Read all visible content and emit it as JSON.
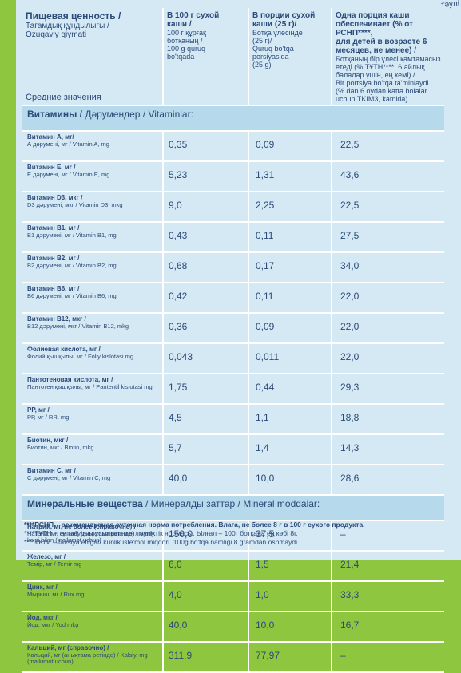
{
  "corner": "тәулі",
  "header": {
    "col1": {
      "title": "Пищевая ценность /",
      "sub1": "Тағамдық құндылығы /",
      "sub2": "Ozuqaviy qiymati",
      "avg": "Средние значения"
    },
    "col2": {
      "l1": "В 100 г сухой",
      "l2": "каши /",
      "l3": "100 г құрғақ",
      "l4": "ботқаның /",
      "l5": "100 g quruq",
      "l6": "bo'tqada"
    },
    "col3": {
      "l1": "В порции сухой",
      "l2": "каши (25 г)/",
      "l3": "Ботқа үлесінде",
      "l4": "(25 г)/",
      "l5": "Quruq bo'tqa",
      "l6": "porsiyasida",
      "l7": "(25 g)"
    },
    "col4": {
      "l1": "Одна порция каши",
      "l2": "обеспечивает (% от РСНП****,",
      "l3": "для детей в возрасте 6",
      "l4": "месяцев, не менее) /",
      "l5": "Ботқаның бір үлесі қамтамасыз",
      "l6": "етеді (% ТҰТН****, 6 айлық",
      "l7": "балалар үшін, ең кемі) /",
      "l8": "Bir portsiya bo'tqa ta'minlaydi",
      "l9": "(% dan 6 oydan katta bolalar",
      "l10": "uchun TKIM3, kamida)"
    }
  },
  "vitamins": {
    "section": {
      "main": "Витамины /",
      "rest": " Дәрумендер / Vitaminlar:"
    },
    "rows": [
      {
        "ru": "Витамин А, мг/",
        "other": "А дәрумені, мг / Vitamin A, mg",
        "v100": "0,35",
        "vport": "0,09",
        "pct": "22,5"
      },
      {
        "ru": "Витамин Е, мг /",
        "other": "Е дәрумені, мг / Vitamin E, mg",
        "v100": "5,23",
        "vport": "1,31",
        "pct": "43,6"
      },
      {
        "ru": "Витамин D3, мкг /",
        "other": "D3 дәрумені, мкг / Vitamin D3, mkg",
        "v100": "9,0",
        "vport": "2,25",
        "pct": "22,5"
      },
      {
        "ru": "Витамин В1, мг /",
        "other": "В1 дәрумені, мг / Vitamin B1, mg",
        "v100": "0,43",
        "vport": "0,11",
        "pct": "27,5"
      },
      {
        "ru": "Витамин В2, мг /",
        "other": "В2 дәрумені, мг / Vitamin B2, mg",
        "v100": "0,68",
        "vport": "0,17",
        "pct": "34,0"
      },
      {
        "ru": "Витамин В6, мг /",
        "other": "В6 дәрумені, мг / Vitamin B6, mg",
        "v100": "0,42",
        "vport": "0,11",
        "pct": "22,0"
      },
      {
        "ru": "Витамин В12, мкг /",
        "other": "В12 дәрумені, мкг / Vitamin B12, mkg",
        "v100": "0,36",
        "vport": "0,09",
        "pct": "22,0"
      },
      {
        "ru": "Фолиевая кислота, мг /",
        "other": "Фолий қышқылы, мг / Foliy kislotasi mg",
        "v100": "0,043",
        "vport": "0,011",
        "pct": "22,0"
      },
      {
        "ru": "Пантотеновая кислота, мг /",
        "other": "Пантотен қышқылы, мг / Pantentil kislotasi mg",
        "v100": "1,75",
        "vport": "0,44",
        "pct": "29,3"
      },
      {
        "ru": "РР, мг /",
        "other": "РР, мг / RR, mg",
        "v100": "4,5",
        "vport": "1,1",
        "pct": "18,8"
      },
      {
        "ru": "Биотин, мкг /",
        "other": "Биотин, мкг / Biotin, mkg",
        "v100": "5,7",
        "vport": "1,4",
        "pct": "14,3"
      },
      {
        "ru": "Витамин С, мг /",
        "other": "С дәрумені, мг / Vitamin C, mg",
        "v100": "40,0",
        "vport": "10,0",
        "pct": "28,6"
      }
    ]
  },
  "minerals": {
    "section": {
      "main": "Минеральные вещества",
      "rest": " / Минералды заттар / Mineral moddalar:"
    },
    "rows": [
      {
        "ru": "Натрий, мг, не более (справочно) /",
        "other": "Натрий, мг, ең көбі (анықтама ретінде) / Natriy, ko'pi bilan (ma'lumot uchun)",
        "v100": "150,0",
        "vport": "37,5",
        "pct": "–"
      },
      {
        "ru": "Железо, мг /",
        "other": "Темір, мг / Temir mg",
        "v100": "6,0",
        "vport": "1,5",
        "pct": "21,4"
      },
      {
        "ru": "Цинк, мг /",
        "other": "Мырыш, мг / Rux mg",
        "v100": "4,0",
        "vport": "1,0",
        "pct": "33,3"
      },
      {
        "ru": "Йод, мкг /",
        "other": "Йод, мкг / Yod mkg",
        "v100": "40,0",
        "vport": "10,0",
        "pct": "16,7"
      },
      {
        "ru": "Кальций, мг (справочно) /",
        "other": "Кальций, мг (анықтама ретінде) / Kalsiy, mg (ma'lumot uchun)",
        "v100": "311,9",
        "vport": "77,97",
        "pct": "–"
      }
    ]
  },
  "footnotes": {
    "f1": "****РСНП – рекомендуемая суточная норма потребления. Влага, не более 8 г в 100 г сухого продукта.",
    "f2": "****ТҰТН – тұтынудың ұсынылатын тәуліктік нормасы. Ылғал – 100г ботқада ең көбі 8г.",
    "f3": "****TKIM – tavsiya etilgan kunlik iste'mol miqdori. 100g bo'tqa namligi 8 gramdan oshmaydi."
  }
}
